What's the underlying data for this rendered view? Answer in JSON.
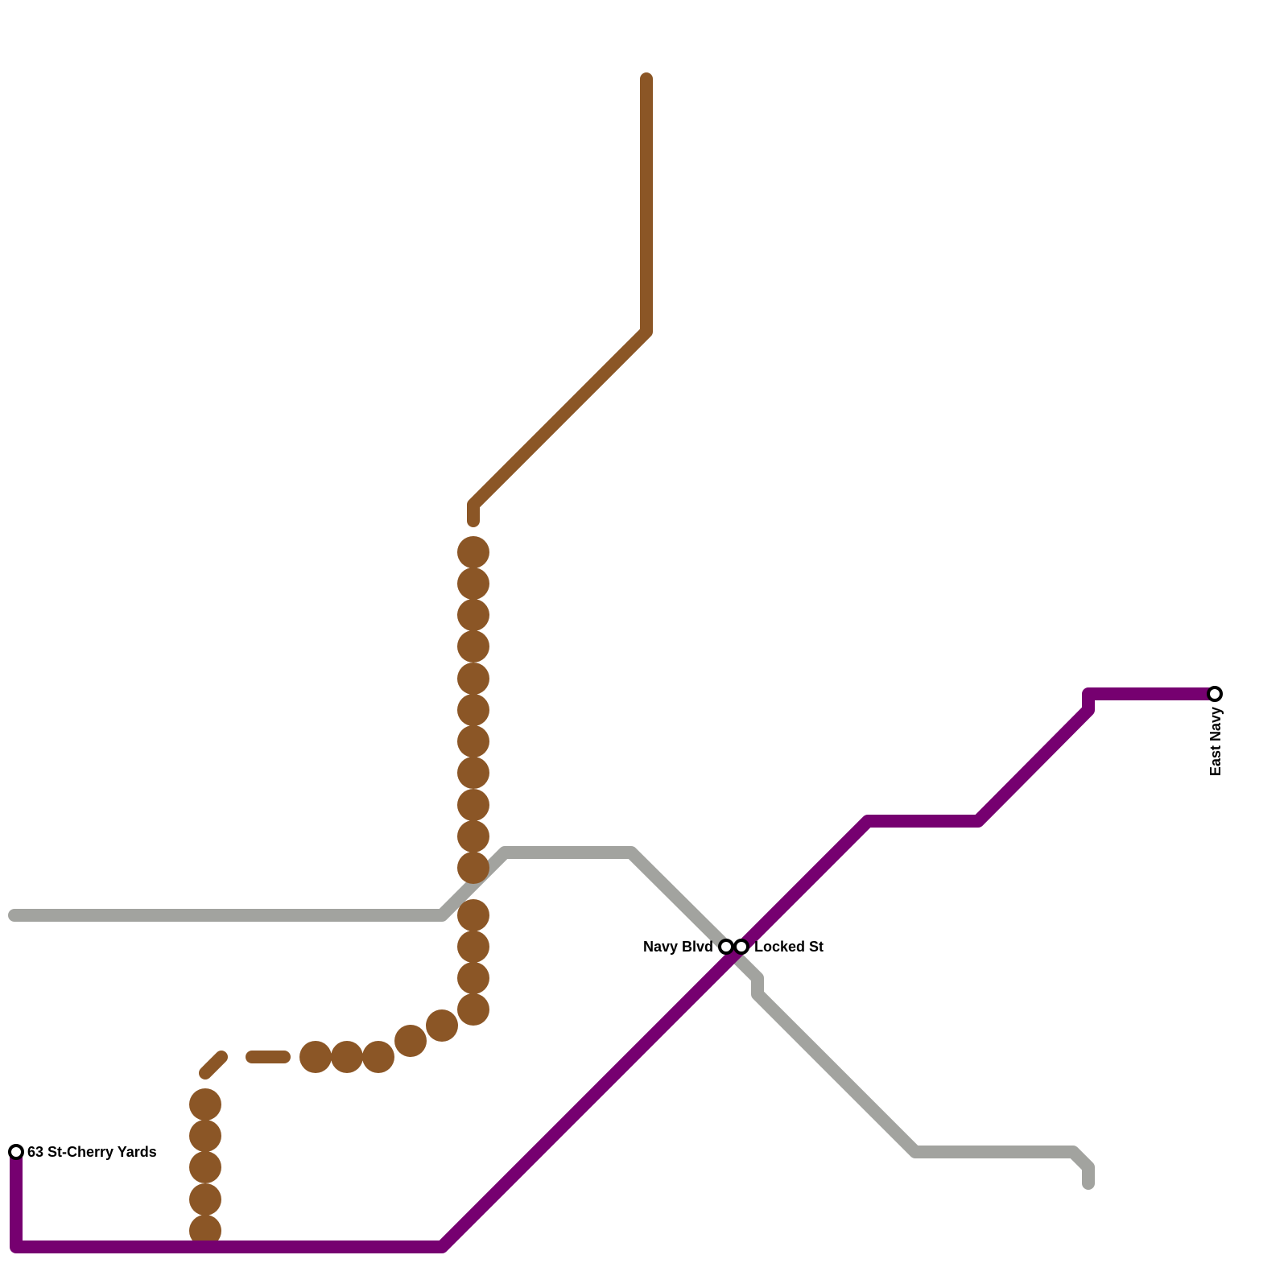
{
  "stations": [
    {
      "label": "63 St-Cherry Yards"
    },
    {
      "label": "Navy Blvd"
    },
    {
      "label": "Locked St"
    },
    {
      "label": "East Navy"
    }
  ]
}
